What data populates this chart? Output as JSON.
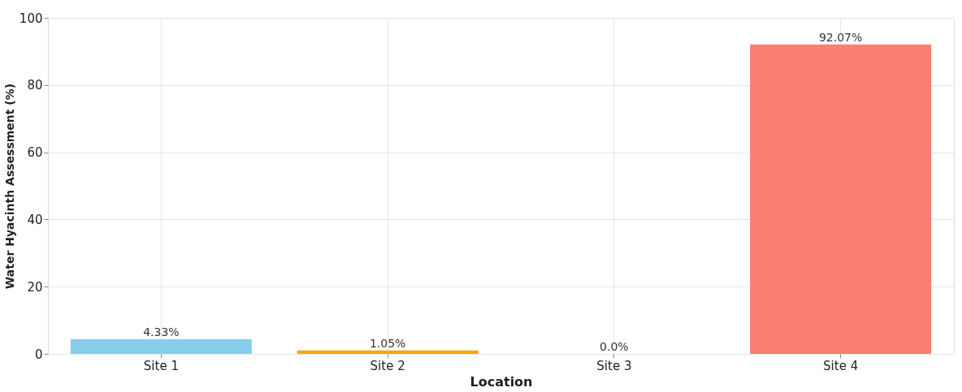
{
  "chart_data": {
    "type": "bar",
    "xlabel": "Location",
    "ylabel": "Water Hyacinth Assessment (%)",
    "categories": [
      "Site 1",
      "Site 2",
      "Site 3",
      "Site 4"
    ],
    "values": [
      4.33,
      1.05,
      0.0,
      92.07
    ],
    "colors": [
      "#87ceeb",
      "#ffa500",
      "#90ee90",
      "#fa8072"
    ],
    "value_labels": [
      "4.33%",
      "1.05%",
      "0.0%",
      "92.07%"
    ],
    "ylim": [
      0,
      100
    ],
    "yticks": [
      0,
      20,
      40,
      60,
      80,
      100
    ],
    "grid": true
  }
}
